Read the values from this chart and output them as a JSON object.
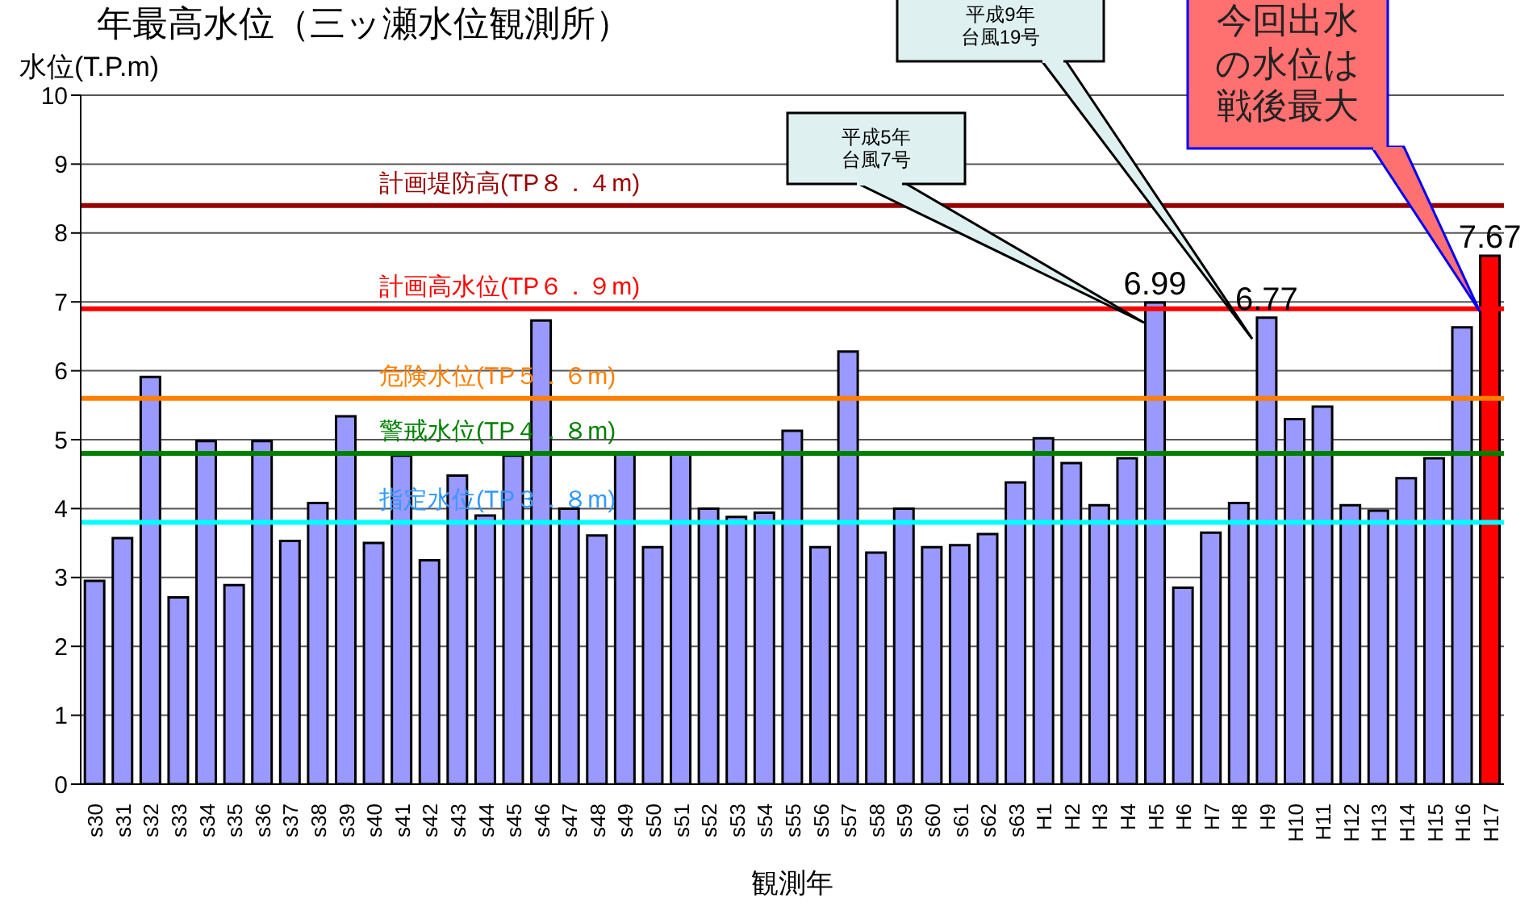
{
  "chart_data": {
    "type": "bar",
    "title": "年最高水位（三ッ瀬水位観測所）",
    "xlabel": "観測年",
    "ylabel": "水位(T.P.m)",
    "categories": [
      "s30",
      "s31",
      "s32",
      "s33",
      "s34",
      "s35",
      "s36",
      "s37",
      "s38",
      "s39",
      "s40",
      "s41",
      "s42",
      "s43",
      "s44",
      "s45",
      "s46",
      "s47",
      "s48",
      "s49",
      "s50",
      "s51",
      "s52",
      "s53",
      "s54",
      "s55",
      "s56",
      "s57",
      "s58",
      "s59",
      "s60",
      "s61",
      "s62",
      "s63",
      "H1",
      "H2",
      "H3",
      "H4",
      "H5",
      "H6",
      "H7",
      "H8",
      "H9",
      "H10",
      "H11",
      "H12",
      "H13",
      "H14",
      "H15",
      "H16",
      "H17"
    ],
    "values": [
      2.95,
      3.57,
      5.91,
      2.71,
      4.98,
      2.89,
      4.98,
      3.53,
      4.08,
      5.34,
      3.5,
      4.77,
      3.25,
      4.48,
      3.9,
      4.77,
      6.73,
      4.0,
      3.61,
      4.8,
      3.44,
      4.8,
      4.0,
      3.88,
      3.94,
      5.13,
      3.44,
      6.28,
      3.36,
      4.0,
      3.44,
      3.47,
      3.63,
      4.38,
      5.02,
      4.66,
      4.05,
      4.73,
      6.99,
      2.85,
      3.65,
      4.08,
      6.77,
      5.3,
      5.48,
      4.05,
      3.97,
      4.44,
      4.73,
      6.63,
      7.67
    ],
    "colors": [
      "#9999ff",
      "#9999ff",
      "#9999ff",
      "#9999ff",
      "#9999ff",
      "#9999ff",
      "#9999ff",
      "#9999ff",
      "#9999ff",
      "#9999ff",
      "#9999ff",
      "#9999ff",
      "#9999ff",
      "#9999ff",
      "#9999ff",
      "#9999ff",
      "#9999ff",
      "#9999ff",
      "#9999ff",
      "#9999ff",
      "#9999ff",
      "#9999ff",
      "#9999ff",
      "#9999ff",
      "#9999ff",
      "#9999ff",
      "#9999ff",
      "#9999ff",
      "#9999ff",
      "#9999ff",
      "#9999ff",
      "#9999ff",
      "#9999ff",
      "#9999ff",
      "#9999ff",
      "#9999ff",
      "#9999ff",
      "#9999ff",
      "#9999ff",
      "#9999ff",
      "#9999ff",
      "#9999ff",
      "#9999ff",
      "#9999ff",
      "#9999ff",
      "#9999ff",
      "#9999ff",
      "#9999ff",
      "#9999ff",
      "#9999ff",
      "#ff0000"
    ],
    "value_labels": [
      null,
      null,
      null,
      null,
      null,
      null,
      null,
      null,
      null,
      null,
      null,
      null,
      null,
      null,
      null,
      null,
      null,
      null,
      null,
      null,
      null,
      null,
      null,
      null,
      null,
      null,
      null,
      null,
      null,
      null,
      null,
      null,
      null,
      null,
      null,
      null,
      null,
      null,
      "6.99",
      null,
      null,
      null,
      "6.77",
      null,
      null,
      null,
      null,
      null,
      null,
      null,
      "7.67"
    ],
    "ylim": [
      0,
      10
    ],
    "yticks": [
      0,
      1,
      2,
      3,
      4,
      5,
      6,
      7,
      8,
      9,
      10
    ],
    "grid": "y",
    "legend": false,
    "ref_lines": [
      {
        "axis": "y",
        "value": 8.4,
        "label": "計画堤防高(TP８．４m)",
        "color": "#990000"
      },
      {
        "axis": "y",
        "value": 6.9,
        "label": "計画高水位(TP６．９m)",
        "color": "#ff0000"
      },
      {
        "axis": "y",
        "value": 5.6,
        "label": "危険水位(TP５．６m)",
        "color": "#ff7f00"
      },
      {
        "axis": "y",
        "value": 4.8,
        "label": "警戒水位(TP４．８m)",
        "color": "#008000"
      },
      {
        "axis": "y",
        "value": 3.8,
        "label": "指定水位(TP３．８m)",
        "color": "#00ffff"
      }
    ],
    "annotations": [
      "平成5年台風7号",
      "平成9年台風19号",
      "今回出水の水位は戦後最大"
    ]
  }
}
